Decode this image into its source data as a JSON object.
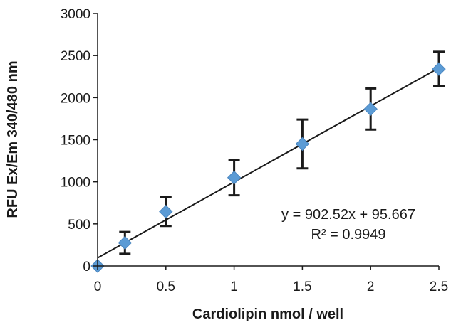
{
  "chart_data": {
    "type": "scatter",
    "title": "",
    "xlabel": "Cardiolipin nmol / well",
    "ylabel": "RFU Ex/Em 340/480 nm",
    "xlim": [
      0,
      2.5
    ],
    "ylim": [
      0,
      3000
    ],
    "x_ticks": [
      "0",
      "0.5",
      "1",
      "1.5",
      "2",
      "2.5"
    ],
    "y_ticks": [
      "0",
      "500",
      "1000",
      "1500",
      "2000",
      "2500",
      "3000"
    ],
    "grid": false,
    "series": [
      {
        "marker": "diamond",
        "color": "#5b9bd5",
        "points": [
          {
            "x": 0,
            "y": 0,
            "err": 0
          },
          {
            "x": 0.2,
            "y": 275,
            "err": 130
          },
          {
            "x": 0.5,
            "y": 645,
            "err": 170
          },
          {
            "x": 1.0,
            "y": 1050,
            "err": 210
          },
          {
            "x": 1.5,
            "y": 1450,
            "err": 290
          },
          {
            "x": 2.0,
            "y": 1865,
            "err": 245
          },
          {
            "x": 2.5,
            "y": 2340,
            "err": 205
          }
        ]
      }
    ],
    "trendline": {
      "type": "linear",
      "slope": 902.52,
      "intercept": 95.667,
      "color": "#1a1a1a",
      "equation": "y = 902.52x + 95.667",
      "r_squared": "R² = 0.9949"
    }
  }
}
